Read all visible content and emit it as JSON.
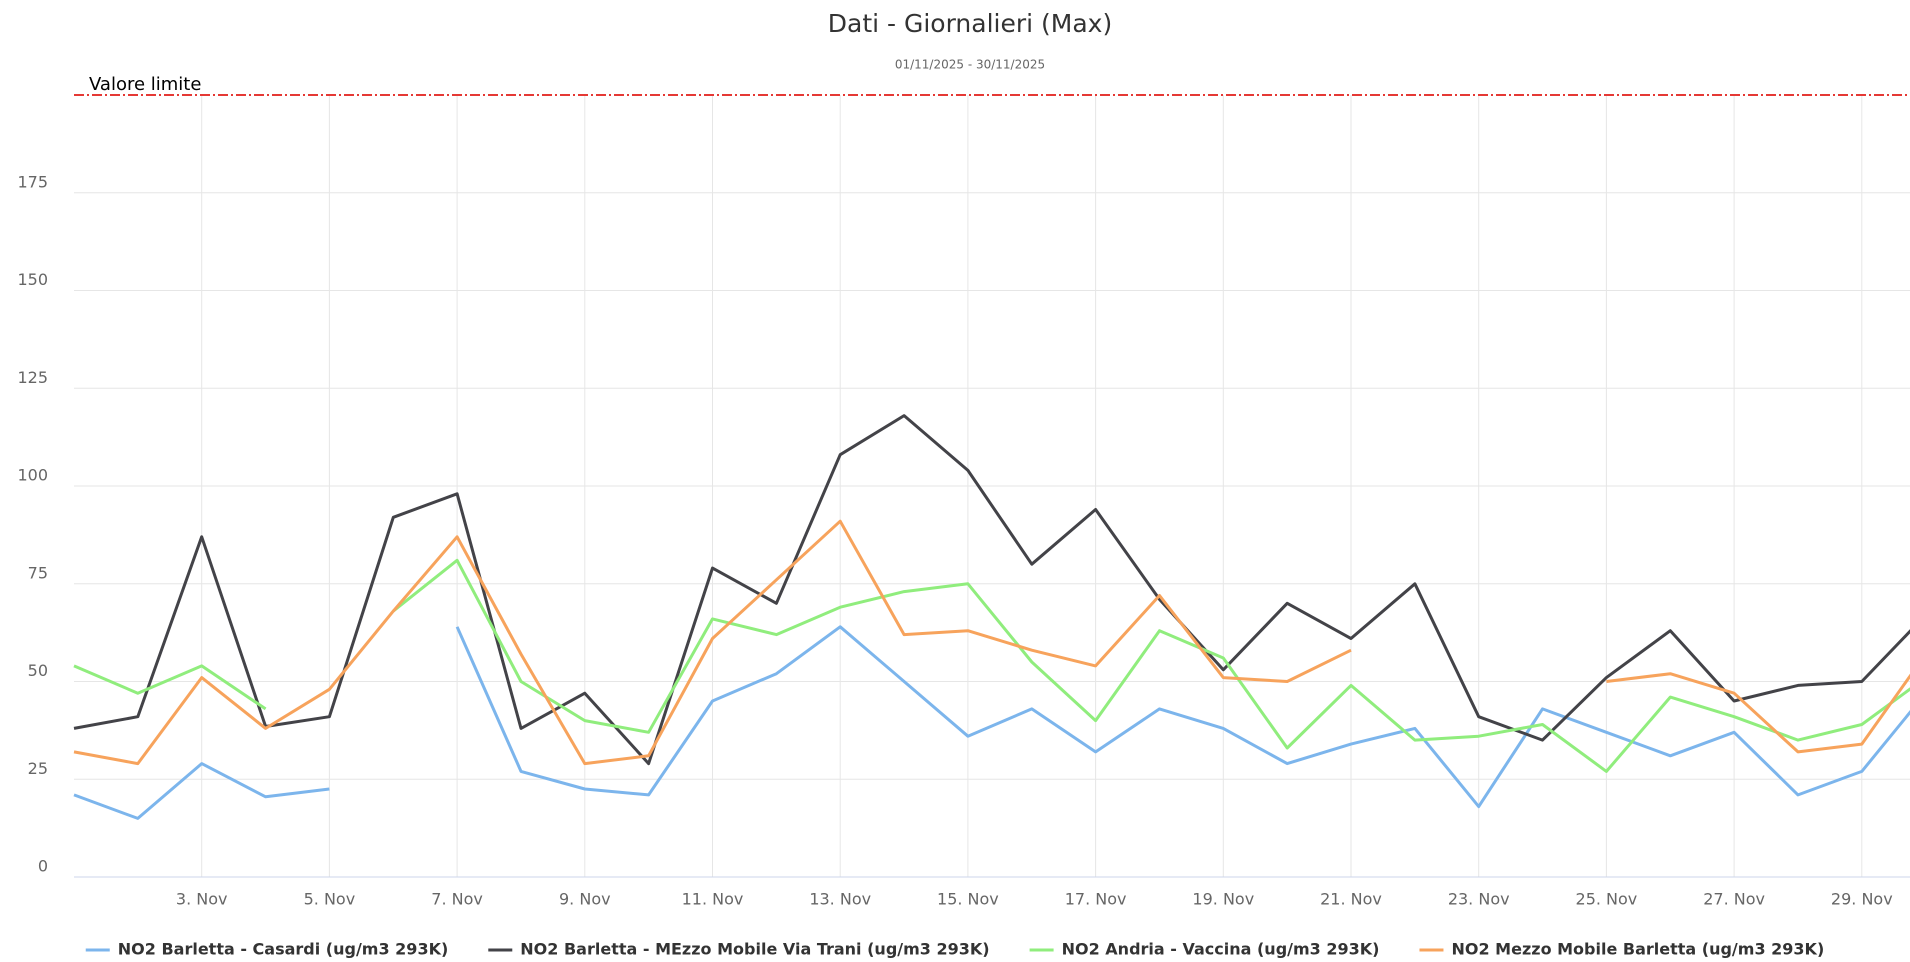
{
  "chart_data": {
    "type": "line",
    "title": "Dati - Giornalieri (Max)",
    "subtitle": "01/11/2025 - 30/11/2025",
    "categories": [
      null,
      null,
      "3. Nov",
      null,
      "5. Nov",
      null,
      "7. Nov",
      null,
      "9. Nov",
      null,
      "11. Nov",
      null,
      "13. Nov",
      null,
      "15. Nov",
      null,
      "17. Nov",
      null,
      "19. Nov",
      null,
      "21. Nov",
      null,
      "23. Nov",
      null,
      "25. Nov",
      null,
      "27. Nov",
      null,
      "29. Nov",
      null
    ],
    "series": [
      {
        "name": "NO2 Barletta - Casardi (ug/m3 293K)",
        "color": "#7cb5ec",
        "values": [
          21,
          15,
          29,
          20.5,
          22.5,
          null,
          64,
          27,
          22.5,
          21,
          45,
          52,
          64,
          50,
          36,
          43,
          32,
          43,
          38,
          29,
          34,
          38,
          18,
          43,
          37,
          31,
          37,
          21,
          27,
          47
        ]
      },
      {
        "name": "NO2 Barletta - MEzzo Mobile Via Trani (ug/m3 293K)",
        "color": "#434348",
        "values": [
          38,
          41,
          87,
          38.5,
          41,
          92,
          98,
          38,
          47,
          29,
          79,
          70,
          108,
          118,
          104,
          80,
          94,
          71,
          53,
          70,
          61,
          75,
          41,
          35,
          51,
          63,
          45,
          49,
          50,
          67
        ]
      },
      {
        "name": "NO2 Andria - Vaccina (ug/m3 293K)",
        "color": "#90ed7d",
        "values": [
          54,
          47,
          54,
          43,
          null,
          68,
          81,
          50,
          40,
          37,
          66,
          62,
          69,
          73,
          75,
          55,
          40,
          63,
          56,
          33,
          49,
          35,
          36,
          39,
          27,
          46,
          41,
          35,
          39,
          51
        ]
      },
      {
        "name": "NO2 Mezzo Mobile Barletta (ug/m3 293K)",
        "color": "#f7a35c",
        "values": [
          32,
          29,
          51,
          38,
          48,
          68,
          87,
          57,
          29,
          31,
          61,
          76,
          91,
          62,
          63,
          58,
          54,
          72,
          51,
          50,
          58,
          null,
          null,
          null,
          50,
          52,
          47,
          32,
          34,
          57
        ]
      }
    ],
    "plot_lines": [
      {
        "value": 200,
        "label": "Valore limite",
        "color": "#e53935"
      }
    ],
    "ylim": [
      0,
      200
    ],
    "yticks": [
      0,
      25,
      50,
      75,
      100,
      125,
      150,
      175
    ],
    "grid": true,
    "legend": "bottom"
  }
}
